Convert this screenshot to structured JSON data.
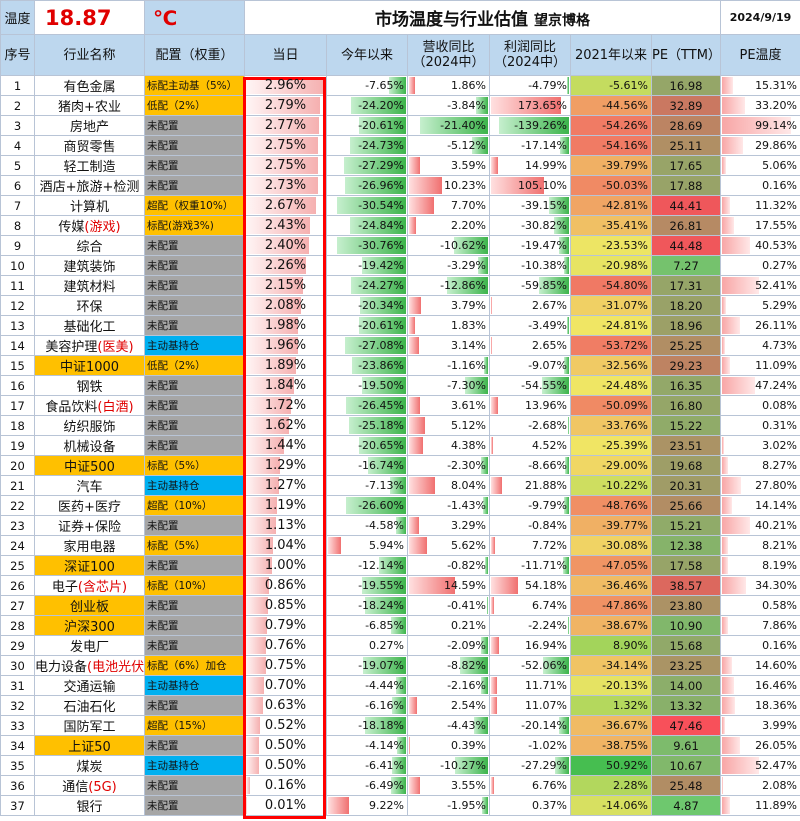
{
  "header": {
    "temp_label": "温度",
    "temp_value": "18.87",
    "temp_unit": "℃",
    "title": "市场温度与行业估值",
    "brand": "望京博格",
    "date": "2024/9/19"
  },
  "columns": [
    "序号",
    "行业名称",
    "配置（权重）",
    "当日",
    "今年以来",
    "营收同比（2024中）",
    "利润同比（2024中）",
    "2021年以来",
    "PE（TTM）",
    "PE温度"
  ],
  "colors": {
    "header_bg": "#bdd7ee",
    "gray": "#a6a6a6",
    "gold": "#ffc000",
    "blue": "#00b0f0",
    "highlight_border": "#ff0000",
    "temp_red": "#e00000"
  },
  "rows": [
    {
      "n": "1",
      "name": "有色金属",
      "name_red": "",
      "name_bg": "",
      "cfg": "标配主动基（5%）",
      "cfg_bg": "gold",
      "today": "2.96%",
      "ytd": "-7.65%",
      "rev": "1.86%",
      "profit": "-4.79%",
      "since2021": "-5.61%",
      "pe": "16.98",
      "pet": "15.31%"
    },
    {
      "n": "2",
      "name": "猪肉+农业",
      "name_red": "",
      "name_bg": "",
      "cfg": "低配（2%）",
      "cfg_bg": "gold",
      "today": "2.79%",
      "ytd": "-24.20%",
      "rev": "-3.84%",
      "profit": "173.65%",
      "since2021": "-44.56%",
      "pe": "32.89",
      "pet": "33.20%"
    },
    {
      "n": "3",
      "name": "房地产",
      "name_red": "",
      "name_bg": "",
      "cfg": "未配置",
      "cfg_bg": "gray",
      "today": "2.77%",
      "ytd": "-20.61%",
      "rev": "-21.40%",
      "profit": "-139.26%",
      "since2021": "-54.26%",
      "pe": "28.69",
      "pet": "99.14%"
    },
    {
      "n": "4",
      "name": "商贸零售",
      "name_red": "",
      "name_bg": "",
      "cfg": "未配置",
      "cfg_bg": "gray",
      "today": "2.75%",
      "ytd": "-24.73%",
      "rev": "-5.12%",
      "profit": "-17.14%",
      "since2021": "-54.16%",
      "pe": "25.11",
      "pet": "29.86%"
    },
    {
      "n": "5",
      "name": "轻工制造",
      "name_red": "",
      "name_bg": "",
      "cfg": "未配置",
      "cfg_bg": "gray",
      "today": "2.75%",
      "ytd": "-27.29%",
      "rev": "3.59%",
      "profit": "14.99%",
      "since2021": "-39.79%",
      "pe": "17.65",
      "pet": "5.06%"
    },
    {
      "n": "6",
      "name": "酒店+旅游+检测",
      "name_red": "",
      "name_bg": "",
      "cfg": "未配置",
      "cfg_bg": "gray",
      "today": "2.73%",
      "ytd": "-26.96%",
      "rev": "10.23%",
      "profit": "105.10%",
      "since2021": "-50.03%",
      "pe": "17.88",
      "pet": "0.16%"
    },
    {
      "n": "7",
      "name": "计算机",
      "name_red": "",
      "name_bg": "",
      "cfg": "超配（权重10%）",
      "cfg_bg": "gold",
      "today": "2.67%",
      "ytd": "-30.54%",
      "rev": "7.70%",
      "profit": "-39.15%",
      "since2021": "-42.81%",
      "pe": "44.41",
      "pet": "11.32%"
    },
    {
      "n": "8",
      "name": "传媒",
      "name_red": "(游戏)",
      "name_bg": "",
      "cfg": "标配(游戏3%)",
      "cfg_bg": "gold",
      "today": "2.43%",
      "ytd": "-24.84%",
      "rev": "2.20%",
      "profit": "-30.82%",
      "since2021": "-35.41%",
      "pe": "26.81",
      "pet": "17.55%"
    },
    {
      "n": "9",
      "name": "综合",
      "name_red": "",
      "name_bg": "",
      "cfg": "未配置",
      "cfg_bg": "gray",
      "today": "2.40%",
      "ytd": "-30.76%",
      "rev": "-10.62%",
      "profit": "-19.47%",
      "since2021": "-23.53%",
      "pe": "44.48",
      "pet": "40.53%"
    },
    {
      "n": "10",
      "name": "建筑装饰",
      "name_red": "",
      "name_bg": "",
      "cfg": "未配置",
      "cfg_bg": "gray",
      "today": "2.26%",
      "ytd": "-19.42%",
      "rev": "-3.29%",
      "profit": "-10.38%",
      "since2021": "-20.98%",
      "pe": "7.27",
      "pet": "0.27%"
    },
    {
      "n": "11",
      "name": "建筑材料",
      "name_red": "",
      "name_bg": "",
      "cfg": "未配置",
      "cfg_bg": "gray",
      "today": "2.15%",
      "ytd": "-24.27%",
      "rev": "-12.86%",
      "profit": "-59.85%",
      "since2021": "-54.80%",
      "pe": "17.31",
      "pet": "52.41%"
    },
    {
      "n": "12",
      "name": "环保",
      "name_red": "",
      "name_bg": "",
      "cfg": "未配置",
      "cfg_bg": "gray",
      "today": "2.08%",
      "ytd": "-20.34%",
      "rev": "3.79%",
      "profit": "2.67%",
      "since2021": "-31.07%",
      "pe": "18.20",
      "pet": "5.29%"
    },
    {
      "n": "13",
      "name": "基础化工",
      "name_red": "",
      "name_bg": "",
      "cfg": "未配置",
      "cfg_bg": "gray",
      "today": "1.98%",
      "ytd": "-20.61%",
      "rev": "1.83%",
      "profit": "-3.49%",
      "since2021": "-24.81%",
      "pe": "18.96",
      "pet": "26.11%"
    },
    {
      "n": "14",
      "name": "美容护理",
      "name_red": "(医美)",
      "name_bg": "",
      "cfg": "主动基持仓",
      "cfg_bg": "blue",
      "today": "1.96%",
      "ytd": "-27.08%",
      "rev": "3.14%",
      "profit": "2.65%",
      "since2021": "-53.72%",
      "pe": "25.25",
      "pet": "4.73%"
    },
    {
      "n": "15",
      "name": "中证1000",
      "name_red": "",
      "name_bg": "gold",
      "cfg": "低配（2%）",
      "cfg_bg": "gold",
      "today": "1.89%",
      "ytd": "-23.86%",
      "rev": "-1.16%",
      "profit": "-9.07%",
      "since2021": "-32.56%",
      "pe": "29.23",
      "pet": "11.09%"
    },
    {
      "n": "16",
      "name": "钢铁",
      "name_red": "",
      "name_bg": "",
      "cfg": "未配置",
      "cfg_bg": "gray",
      "today": "1.84%",
      "ytd": "-19.50%",
      "rev": "-7.30%",
      "profit": "-54.55%",
      "since2021": "-24.48%",
      "pe": "16.35",
      "pet": "47.24%"
    },
    {
      "n": "17",
      "name": "食品饮料",
      "name_red": "(白酒)",
      "name_bg": "",
      "cfg": "未配置",
      "cfg_bg": "gray",
      "today": "1.72%",
      "ytd": "-26.45%",
      "rev": "3.61%",
      "profit": "13.96%",
      "since2021": "-50.09%",
      "pe": "16.80",
      "pet": "0.08%"
    },
    {
      "n": "18",
      "name": "纺织服饰",
      "name_red": "",
      "name_bg": "",
      "cfg": "未配置",
      "cfg_bg": "gray",
      "today": "1.62%",
      "ytd": "-25.18%",
      "rev": "5.12%",
      "profit": "-2.68%",
      "since2021": "-33.76%",
      "pe": "15.22",
      "pet": "0.31%"
    },
    {
      "n": "19",
      "name": "机械设备",
      "name_red": "",
      "name_bg": "",
      "cfg": "未配置",
      "cfg_bg": "gray",
      "today": "1.44%",
      "ytd": "-20.65%",
      "rev": "4.38%",
      "profit": "4.52%",
      "since2021": "-25.39%",
      "pe": "23.51",
      "pet": "3.02%"
    },
    {
      "n": "20",
      "name": "中证500",
      "name_red": "",
      "name_bg": "gold",
      "cfg": "标配（5%）",
      "cfg_bg": "gold",
      "today": "1.29%",
      "ytd": "-16.74%",
      "rev": "-2.30%",
      "profit": "-8.66%",
      "since2021": "-29.00%",
      "pe": "19.68",
      "pet": "8.27%"
    },
    {
      "n": "21",
      "name": "汽车",
      "name_red": "",
      "name_bg": "",
      "cfg": "主动基持仓",
      "cfg_bg": "blue",
      "today": "1.27%",
      "ytd": "-7.13%",
      "rev": "8.04%",
      "profit": "21.88%",
      "since2021": "-10.22%",
      "pe": "20.31",
      "pet": "27.80%"
    },
    {
      "n": "22",
      "name": "医药+医疗",
      "name_red": "",
      "name_bg": "",
      "cfg": "超配（10%）",
      "cfg_bg": "gold",
      "today": "1.19%",
      "ytd": "-26.60%",
      "rev": "-1.43%",
      "profit": "-9.79%",
      "since2021": "-48.76%",
      "pe": "25.66",
      "pet": "14.14%"
    },
    {
      "n": "23",
      "name": "证券+保险",
      "name_red": "",
      "name_bg": "",
      "cfg": "未配置",
      "cfg_bg": "gray",
      "today": "1.13%",
      "ytd": "-4.58%",
      "rev": "3.29%",
      "profit": "-0.84%",
      "since2021": "-39.77%",
      "pe": "15.21",
      "pet": "40.21%"
    },
    {
      "n": "24",
      "name": "家用电器",
      "name_red": "",
      "name_bg": "",
      "cfg": "标配（5%）",
      "cfg_bg": "gold",
      "today": "1.04%",
      "ytd": "5.94%",
      "rev": "5.62%",
      "profit": "7.72%",
      "since2021": "-30.08%",
      "pe": "12.38",
      "pet": "8.21%"
    },
    {
      "n": "25",
      "name": "深证100",
      "name_red": "",
      "name_bg": "gold",
      "cfg": "未配置",
      "cfg_bg": "gray",
      "today": "1.00%",
      "ytd": "-12.14%",
      "rev": "-0.82%",
      "profit": "-11.71%",
      "since2021": "-47.05%",
      "pe": "17.58",
      "pet": "8.19%"
    },
    {
      "n": "26",
      "name": "电子",
      "name_red": "(含芯片)",
      "name_bg": "",
      "cfg": "标配（10%）",
      "cfg_bg": "gold",
      "today": "0.86%",
      "ytd": "-19.55%",
      "rev": "14.59%",
      "profit": "54.18%",
      "since2021": "-36.46%",
      "pe": "38.57",
      "pet": "34.30%"
    },
    {
      "n": "27",
      "name": "创业板",
      "name_red": "",
      "name_bg": "gold",
      "cfg": "未配置",
      "cfg_bg": "gray",
      "today": "0.85%",
      "ytd": "-18.24%",
      "rev": "-0.41%",
      "profit": "6.74%",
      "since2021": "-47.86%",
      "pe": "23.80",
      "pet": "0.58%"
    },
    {
      "n": "28",
      "name": "沪深300",
      "name_red": "",
      "name_bg": "gold",
      "cfg": "未配置",
      "cfg_bg": "gray",
      "today": "0.79%",
      "ytd": "-6.85%",
      "rev": "0.21%",
      "profit": "-2.24%",
      "since2021": "-38.67%",
      "pe": "10.90",
      "pet": "7.86%"
    },
    {
      "n": "29",
      "name": "发电厂",
      "name_red": "",
      "name_bg": "",
      "cfg": "未配置",
      "cfg_bg": "gray",
      "today": "0.76%",
      "ytd": "0.27%",
      "rev": "-2.09%",
      "profit": "16.94%",
      "since2021": "8.90%",
      "pe": "15.68",
      "pet": "0.16%"
    },
    {
      "n": "30",
      "name": "电力设备",
      "name_red": "(电池光伏)",
      "name_bg": "",
      "cfg": "标配（6%）加仓",
      "cfg_bg": "gold",
      "today": "0.75%",
      "ytd": "-19.07%",
      "rev": "-8.82%",
      "profit": "-52.06%",
      "since2021": "-34.14%",
      "pe": "23.25",
      "pet": "14.60%"
    },
    {
      "n": "31",
      "name": "交通运输",
      "name_red": "",
      "name_bg": "",
      "cfg": "主动基持仓",
      "cfg_bg": "blue",
      "today": "0.70%",
      "ytd": "-4.44%",
      "rev": "-2.16%",
      "profit": "11.71%",
      "since2021": "-20.13%",
      "pe": "14.00",
      "pet": "16.46%"
    },
    {
      "n": "32",
      "name": "石油石化",
      "name_red": "",
      "name_bg": "",
      "cfg": "未配置",
      "cfg_bg": "gray",
      "today": "0.63%",
      "ytd": "-6.16%",
      "rev": "2.54%",
      "profit": "11.07%",
      "since2021": "1.32%",
      "pe": "13.32",
      "pet": "18.36%"
    },
    {
      "n": "33",
      "name": "国防军工",
      "name_red": "",
      "name_bg": "",
      "cfg": "超配（15%）",
      "cfg_bg": "gold",
      "today": "0.52%",
      "ytd": "-18.18%",
      "rev": "-4.43%",
      "profit": "-20.14%",
      "since2021": "-36.67%",
      "pe": "47.46",
      "pet": "3.99%"
    },
    {
      "n": "34",
      "name": "上证50",
      "name_red": "",
      "name_bg": "gold",
      "cfg": "未配置",
      "cfg_bg": "gray",
      "today": "0.50%",
      "ytd": "-4.14%",
      "rev": "0.39%",
      "profit": "-1.02%",
      "since2021": "-38.75%",
      "pe": "9.61",
      "pet": "26.05%"
    },
    {
      "n": "35",
      "name": "煤炭",
      "name_red": "",
      "name_bg": "",
      "cfg": "主动基持仓",
      "cfg_bg": "blue",
      "today": "0.50%",
      "ytd": "-6.41%",
      "rev": "-10.27%",
      "profit": "-27.29%",
      "since2021": "50.92%",
      "pe": "10.67",
      "pet": "52.47%"
    },
    {
      "n": "36",
      "name": "通信",
      "name_red": "(5G)",
      "name_bg": "",
      "cfg": "未配置",
      "cfg_bg": "gray",
      "today": "0.16%",
      "ytd": "-6.49%",
      "rev": "3.55%",
      "profit": "6.76%",
      "since2021": "2.28%",
      "pe": "25.48",
      "pet": "2.08%"
    },
    {
      "n": "37",
      "name": "银行",
      "name_red": "",
      "name_bg": "",
      "cfg": "未配置",
      "cfg_bg": "gray",
      "today": "0.01%",
      "ytd": "9.22%",
      "rev": "-1.95%",
      "profit": "0.37%",
      "since2021": "-14.06%",
      "pe": "4.87",
      "pet": "11.89%"
    }
  ]
}
